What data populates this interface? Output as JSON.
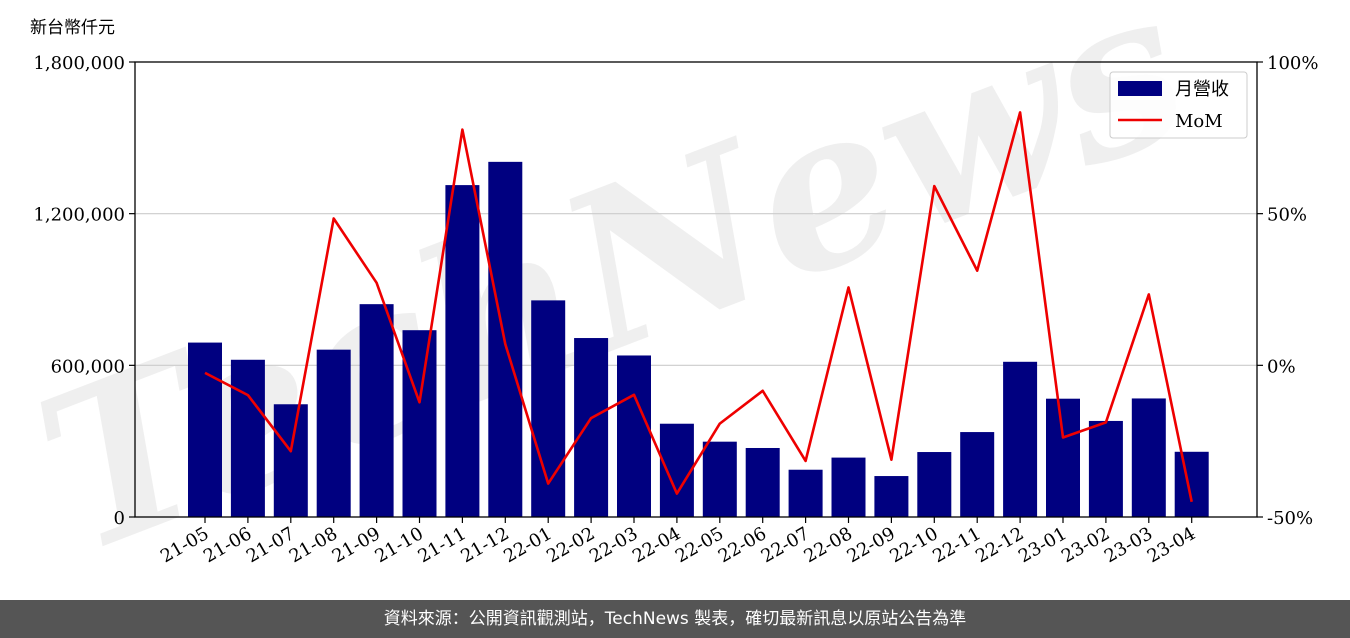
{
  "chart_data": {
    "type": "bar",
    "unit_label": "新台幣仟元",
    "categories": [
      "21-05",
      "21-06",
      "21-07",
      "21-08",
      "21-09",
      "21-10",
      "21-11",
      "21-12",
      "22-01",
      "22-02",
      "22-03",
      "22-04",
      "22-05",
      "22-06",
      "22-07",
      "22-08",
      "22-09",
      "22-10",
      "22-11",
      "22-12",
      "23-01",
      "23-02",
      "23-03",
      "23-04"
    ],
    "series": [
      {
        "name": "月營收",
        "axis": "left",
        "type": "bar",
        "color": "#000080",
        "values": [
          690000,
          622000,
          446000,
          662000,
          842000,
          739000,
          1313000,
          1405000,
          857000,
          708000,
          639000,
          369000,
          298000,
          273000,
          187000,
          235000,
          162000,
          257000,
          336000,
          614000,
          468000,
          380000,
          469000,
          258000
        ]
      },
      {
        "name": "MoM",
        "axis": "right",
        "type": "line",
        "color": "#ee0000",
        "values": [
          -2.5,
          -9.8,
          -28.3,
          48.4,
          27.2,
          -12.2,
          77.7,
          7.0,
          -39.0,
          -17.4,
          -9.7,
          -42.3,
          -19.2,
          -8.4,
          -31.5,
          25.7,
          -31.1,
          59.1,
          31.2,
          83.4,
          -23.8,
          -18.8,
          23.4,
          -45.0
        ]
      }
    ],
    "y_left": {
      "min": 0,
      "max": 1800000,
      "ticks": [
        0,
        600000,
        1200000,
        1800000
      ],
      "tick_labels": [
        "0",
        "600,000",
        "1,200,000",
        "1,800,000"
      ]
    },
    "y_right": {
      "min": -50,
      "max": 100,
      "ticks": [
        -50,
        0,
        50,
        100
      ],
      "tick_labels": [
        "-50%",
        "0%",
        "50%",
        "100%"
      ]
    },
    "grid": "horizontal",
    "legend_position": "top-right",
    "watermark": "TechNews"
  },
  "footer": {
    "text": "資料來源：公開資訊觀測站，TechNews 製表，確切最新訊息以原站公告為準"
  }
}
